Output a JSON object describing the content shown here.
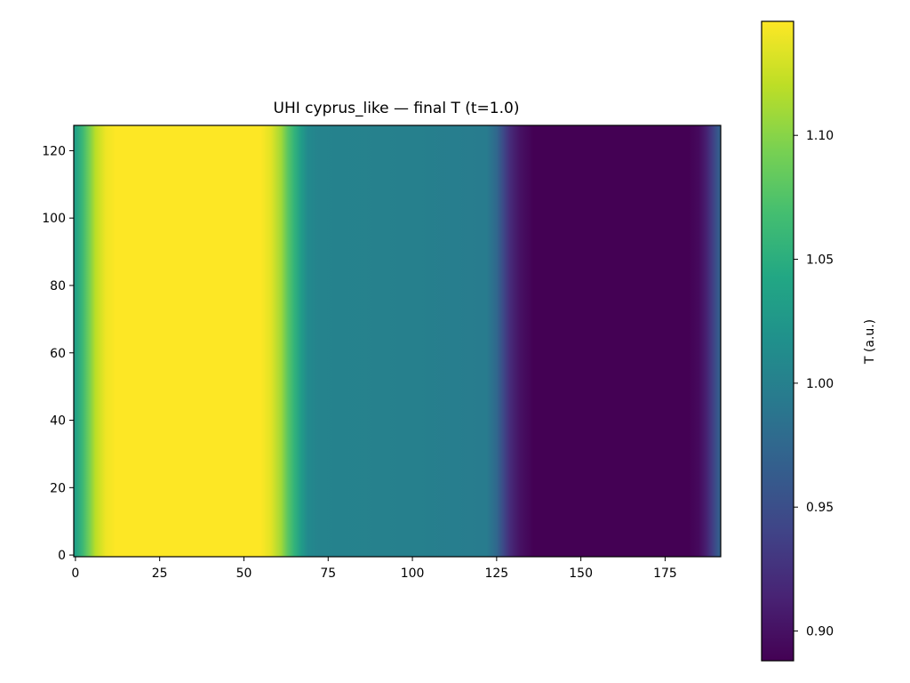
{
  "chart_data": {
    "type": "heatmap",
    "title": "UHI cyprus_like — final T (t=1.0)",
    "xlabel": "",
    "ylabel": "",
    "xlim": [
      -0.5,
      191.5
    ],
    "ylim": [
      -0.5,
      127.5
    ],
    "x_ticks": [
      0,
      25,
      50,
      75,
      100,
      125,
      150,
      175
    ],
    "y_ticks": [
      0,
      20,
      40,
      60,
      80,
      100,
      120
    ],
    "colormap": "viridis",
    "colorbar": {
      "label": "T (a.u.)",
      "range": [
        0.888,
        1.146
      ],
      "ticks": [
        0.9,
        0.95,
        1.0,
        1.05,
        1.1
      ],
      "tick_labels": [
        "0.90",
        "0.95",
        "1.00",
        "1.05",
        "1.10"
      ]
    },
    "grid": false,
    "values_vary_along": "x",
    "column_profile": [
      {
        "x": 0,
        "value": 1.035
      },
      {
        "x": 2,
        "value": 1.06
      },
      {
        "x": 4,
        "value": 1.09
      },
      {
        "x": 6,
        "value": 1.12
      },
      {
        "x": 9,
        "value": 1.14
      },
      {
        "x": 12,
        "value": 1.146
      },
      {
        "x": 55,
        "value": 1.146
      },
      {
        "x": 58,
        "value": 1.135
      },
      {
        "x": 61,
        "value": 1.11
      },
      {
        "x": 63,
        "value": 1.08
      },
      {
        "x": 65,
        "value": 1.055
      },
      {
        "x": 67,
        "value": 1.03
      },
      {
        "x": 69,
        "value": 1.01
      },
      {
        "x": 72,
        "value": 1.003
      },
      {
        "x": 100,
        "value": 1.0
      },
      {
        "x": 122,
        "value": 0.995
      },
      {
        "x": 125,
        "value": 0.975
      },
      {
        "x": 127,
        "value": 0.945
      },
      {
        "x": 129,
        "value": 0.92
      },
      {
        "x": 132,
        "value": 0.9
      },
      {
        "x": 136,
        "value": 0.888
      },
      {
        "x": 182,
        "value": 0.888
      },
      {
        "x": 185,
        "value": 0.895
      },
      {
        "x": 187,
        "value": 0.91
      },
      {
        "x": 189,
        "value": 0.935
      },
      {
        "x": 191,
        "value": 0.965
      }
    ]
  }
}
